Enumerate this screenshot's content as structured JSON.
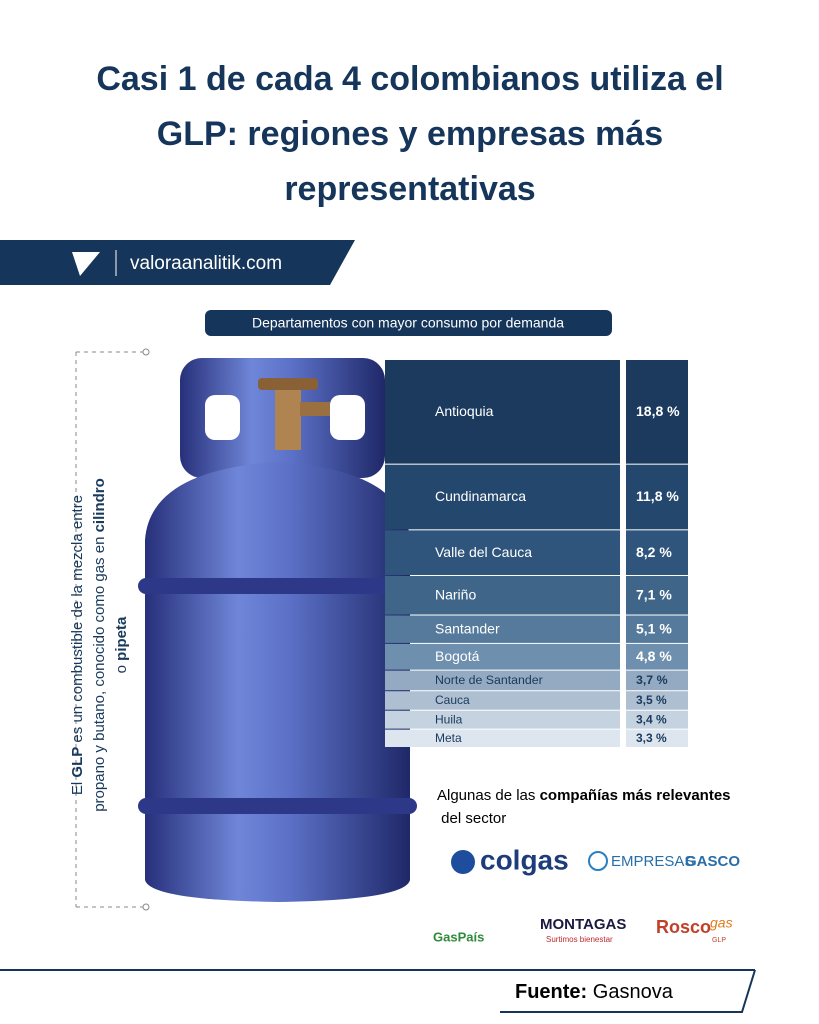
{
  "header": {
    "title": "Casi 1 de cada 4 colombianos utiliza el GLP: regiones y empresas más representativas",
    "site": "valoraanalitik.com"
  },
  "chart_data": {
    "type": "bar",
    "title": "Departamentos con mayor consumo por demanda",
    "categories": [
      "Antioquia",
      "Cundinamarca",
      "Valle del Cauca",
      "Nariño",
      "Santander",
      "Bogotá",
      "Norte de Santander",
      "Cauca",
      "Huila",
      "Meta"
    ],
    "values": [
      18.8,
      11.8,
      8.2,
      7.1,
      5.1,
      4.8,
      3.7,
      3.5,
      3.4,
      3.3
    ],
    "value_labels": [
      "18,8 %",
      "11,8 %",
      "8,2 %",
      "7,1 %",
      "5,1 %",
      "4,8 %",
      "3,7 %",
      "3,5 %",
      "3,4 %",
      "3,3 %"
    ],
    "colors": [
      "#1b3a5e",
      "#24476d",
      "#2f557c",
      "#3f6589",
      "#557a9c",
      "#6f8fae",
      "#93aac2",
      "#aebfd1",
      "#c5d2df",
      "#dde5ee"
    ]
  },
  "note": {
    "segments": [
      {
        "text": "El ",
        "bold": false
      },
      {
        "text": "GLP",
        "bold": true
      },
      {
        "text": " es un combustible de la mezcla entre propano y butano, conocido como gas en ",
        "bold": false
      },
      {
        "text": "cilindro",
        "bold": true
      },
      {
        "text": " o ",
        "bold": false
      },
      {
        "text": "pipeta",
        "bold": true
      }
    ]
  },
  "companies": {
    "intro": [
      {
        "text": "Algunas de las ",
        "bold": false
      },
      {
        "text": "compañías más relevantes",
        "bold": true
      },
      {
        "text": " del sector",
        "bold": false
      }
    ],
    "logos": {
      "colgas": "colgas",
      "gasco_a": "EMPRESAS",
      "gasco_b": "GASCO",
      "gaspais": "GasPaís",
      "montagas": "MONTAGAS",
      "montagas_tag": "Surtimos bienestar",
      "rosco_a": "Rosco",
      "rosco_b": "gas",
      "rosco_c": "GLP"
    }
  },
  "source": {
    "label": "Fuente:",
    "name": "Gasnova"
  }
}
